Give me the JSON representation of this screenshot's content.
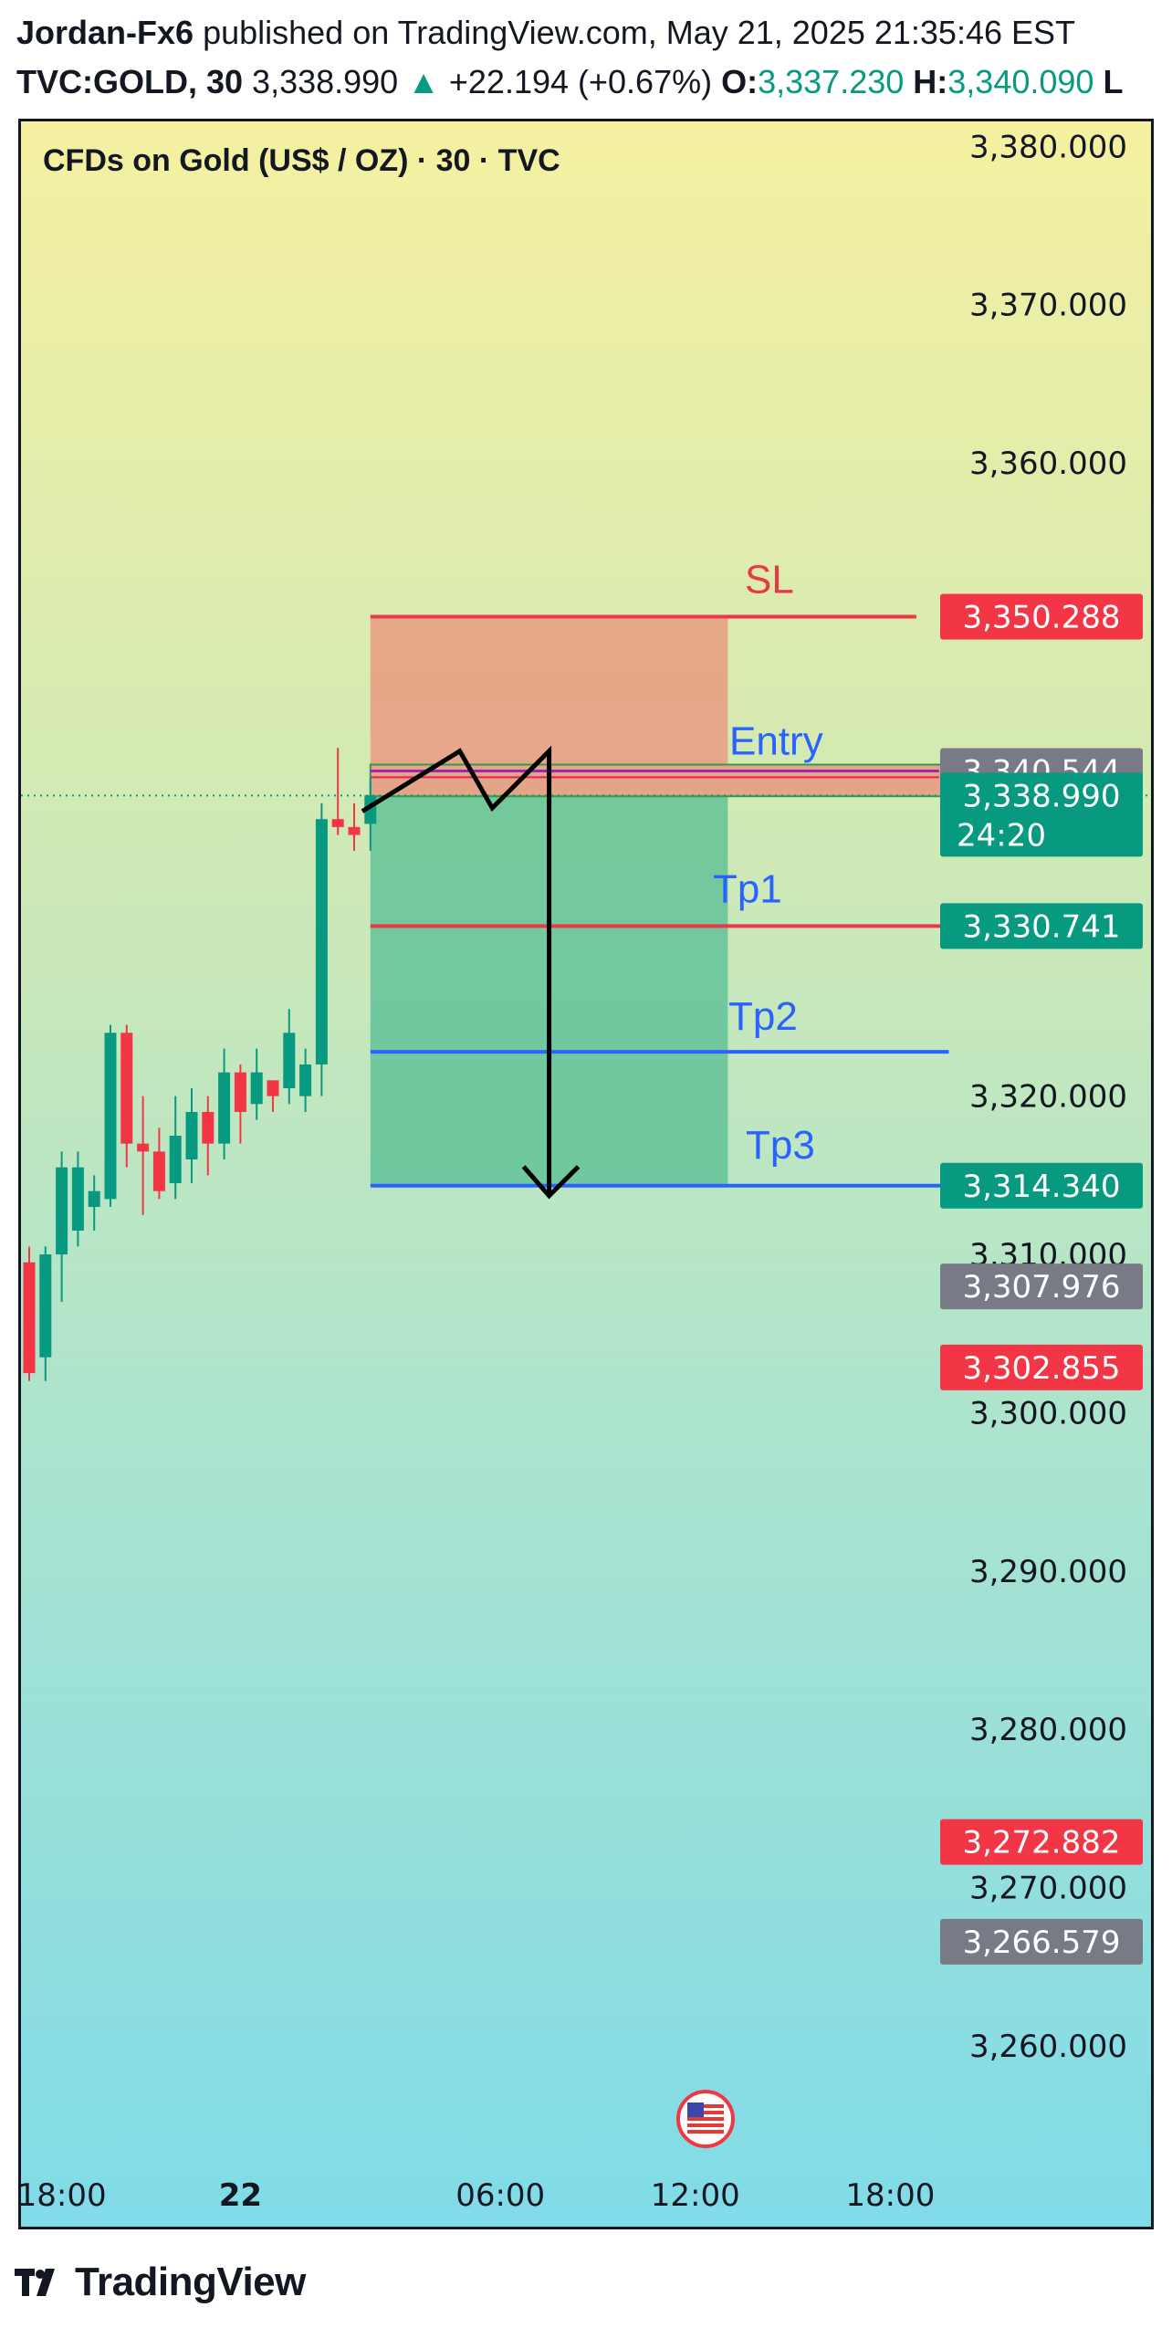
{
  "header": {
    "author": "Jordan-Fx6",
    "published_text": "published on TradingView.com, May 21, 2025 21:35:46 EST",
    "symbol": "TVC:GOLD, 30",
    "last_price": "3,338.990",
    "change": "+22.194 (+0.67%)",
    "open_label": "O:",
    "open_value": "3,337.230",
    "high_label": "H:",
    "high_value": "3,340.090",
    "trailing": "L"
  },
  "chart_title": "CFDs on Gold (US$ / OZ) · 30 · TVC",
  "footer": {
    "brand": "TradingView"
  },
  "colors": {
    "bull": "#089981",
    "bear": "#f23645",
    "sl_line": "#e8394a",
    "tp_blue": "#2962ff",
    "label_red": "#f23645",
    "label_green": "#089981",
    "label_gray": "#787b86"
  },
  "chart_data": {
    "type": "candlestick",
    "ylim": [
      3254,
      3381
    ],
    "yticks": [
      3380,
      3370,
      3360,
      3320,
      3310,
      3300,
      3290,
      3280,
      3270,
      3260
    ],
    "ytick_labels": [
      "3,380.000",
      "3,370.000",
      "3,360.000",
      "3,320.000",
      "3,310.000",
      "3,300.000",
      "3,290.000",
      "3,280.000",
      "3,270.000",
      "3,260.000"
    ],
    "xticks": [
      {
        "label": "18:00",
        "idx": 2,
        "bold": false
      },
      {
        "label": "22",
        "idx": 13,
        "bold": true
      },
      {
        "label": "06:00",
        "idx": 29,
        "bold": false
      },
      {
        "label": "12:00",
        "idx": 41,
        "bold": false
      },
      {
        "label": "18:00",
        "idx": 53,
        "bold": false
      }
    ],
    "candles": [
      {
        "o": 3309.5,
        "h": 3310.5,
        "l": 3302.0,
        "c": 3302.5
      },
      {
        "o": 3303.5,
        "h": 3310.5,
        "l": 3302.0,
        "c": 3310.0
      },
      {
        "o": 3310.0,
        "h": 3316.5,
        "l": 3307.0,
        "c": 3315.5
      },
      {
        "o": 3311.5,
        "h": 3316.5,
        "l": 3310.5,
        "c": 3315.5
      },
      {
        "o": 3313.0,
        "h": 3315.0,
        "l": 3311.5,
        "c": 3314.0
      },
      {
        "o": 3313.5,
        "h": 3324.5,
        "l": 3313.0,
        "c": 3324.0
      },
      {
        "o": 3324.0,
        "h": 3324.5,
        "l": 3315.5,
        "c": 3317.0
      },
      {
        "o": 3317.0,
        "h": 3320.0,
        "l": 3312.5,
        "c": 3316.5
      },
      {
        "o": 3316.5,
        "h": 3318.0,
        "l": 3313.5,
        "c": 3314.0
      },
      {
        "o": 3314.5,
        "h": 3320.0,
        "l": 3313.5,
        "c": 3317.5
      },
      {
        "o": 3316.0,
        "h": 3320.5,
        "l": 3314.5,
        "c": 3319.0
      },
      {
        "o": 3319.0,
        "h": 3320.0,
        "l": 3315.0,
        "c": 3317.0
      },
      {
        "o": 3317.0,
        "h": 3323.0,
        "l": 3316.0,
        "c": 3321.5
      },
      {
        "o": 3321.5,
        "h": 3322.0,
        "l": 3317.0,
        "c": 3319.0
      },
      {
        "o": 3319.5,
        "h": 3323.0,
        "l": 3318.5,
        "c": 3321.5
      },
      {
        "o": 3321.0,
        "h": 3320.5,
        "l": 3319.0,
        "c": 3320.0
      },
      {
        "o": 3320.5,
        "h": 3325.5,
        "l": 3319.5,
        "c": 3324.0
      },
      {
        "o": 3320.0,
        "h": 3323.0,
        "l": 3319.0,
        "c": 3322.0
      },
      {
        "o": 3322.0,
        "h": 3338.5,
        "l": 3320.0,
        "c": 3337.5
      },
      {
        "o": 3337.5,
        "h": 3342.0,
        "l": 3336.5,
        "c": 3337.0
      },
      {
        "o": 3337.0,
        "h": 3338.5,
        "l": 3335.5,
        "c": 3336.5
      },
      {
        "o": 3337.2,
        "h": 3340.1,
        "l": 3335.5,
        "c": 3339.0
      }
    ],
    "drawings": {
      "sl": {
        "label": "SL",
        "price": 3350.288
      },
      "entry": {
        "label": "Entry",
        "price": 3340.544
      },
      "tp1": {
        "label": "Tp1",
        "price": 3330.741
      },
      "tp2": {
        "label": "Tp2",
        "price": 3322.8
      },
      "tp3": {
        "label": "Tp3",
        "price": 3314.34
      },
      "path": [
        {
          "idx": 20.5,
          "price": 3338.0
        },
        {
          "idx": 26.5,
          "price": 3341.8
        },
        {
          "idx": 28.5,
          "price": 3338.2
        },
        {
          "idx": 32.0,
          "price": 3341.8
        },
        {
          "idx": 32.0,
          "price": 3313.7
        }
      ]
    },
    "price_labels": [
      {
        "text": "3,350.288",
        "price": 3350.288,
        "color": "red"
      },
      {
        "text": "3,340.544",
        "price": 3340.544,
        "color": "gray"
      },
      {
        "text": "3,338.990",
        "sub": "24:20",
        "price": 3338.99,
        "color": "green"
      },
      {
        "text": "3,330.741",
        "price": 3330.741,
        "color": "green"
      },
      {
        "text": "3,314.340",
        "price": 3314.34,
        "color": "green"
      },
      {
        "text": "3,307.976",
        "price": 3307.976,
        "color": "gray"
      },
      {
        "text": "3,302.855",
        "price": 3302.855,
        "color": "red"
      },
      {
        "text": "3,272.882",
        "price": 3272.882,
        "color": "red"
      },
      {
        "text": "3,266.579",
        "price": 3266.579,
        "color": "gray"
      }
    ]
  }
}
